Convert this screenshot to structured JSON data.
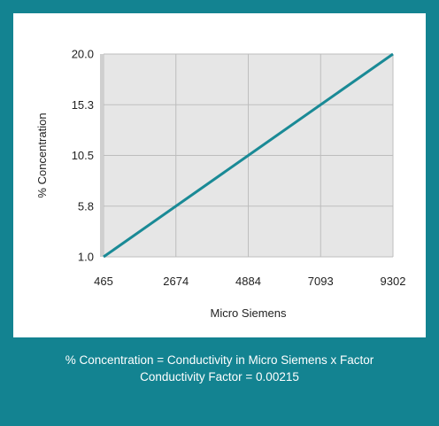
{
  "colors": {
    "frame": "#138391",
    "panel": "#ffffff",
    "plot_bg": "#e6e6e6",
    "grid": "#bdbdbd",
    "line": "#1a8a96",
    "axis_rule": "#cfcfcf"
  },
  "chart_data": {
    "type": "line",
    "title": "",
    "xlabel": "Micro Siemens",
    "ylabel": "% Concentration",
    "x_ticks": [
      465,
      2674,
      4884,
      7093,
      9302
    ],
    "x_tick_labels": [
      "465",
      "2674",
      "4884",
      "7093",
      "9302"
    ],
    "y_tick_labels": [
      "1.0",
      "5.8",
      "10.5",
      "15.3",
      "20.0"
    ],
    "grid": true,
    "series": [
      {
        "x": [
          465,
          2674,
          4884,
          7093,
          9302
        ],
        "y": [
          1.0,
          5.8,
          10.5,
          15.3,
          20.0
        ]
      }
    ]
  },
  "caption": {
    "line1": "% Concentration = Conductivity in Micro Siemens x Factor",
    "line2": "Conductivity Factor = 0.00215"
  }
}
